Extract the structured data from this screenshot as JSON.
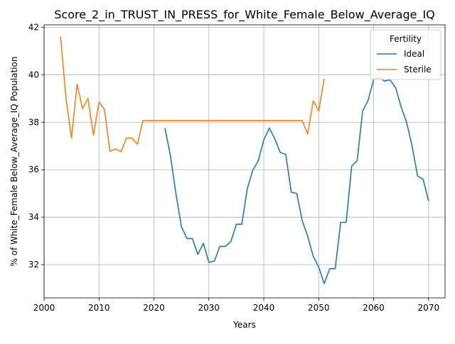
{
  "chart_data": {
    "type": "line",
    "title": "Score_2_in_TRUST_IN_PRESS_for_White_Female_Below_Average_IQ",
    "xlabel": "Years",
    "ylabel": "% of White_Female Below_Average_IQ Population",
    "xlim": [
      2000,
      2073
    ],
    "ylim": [
      30.6,
      42.1
    ],
    "xticks": [
      2000,
      2010,
      2020,
      2030,
      2040,
      2050,
      2060,
      2070
    ],
    "yticks": [
      32,
      34,
      36,
      38,
      40,
      42
    ],
    "grid": true,
    "legend": {
      "title": "Fertility",
      "placement": "top-right"
    },
    "series": [
      {
        "name": "Ideal",
        "color": "#1f77b4",
        "x": [
          2022,
          2023,
          2024,
          2025,
          2026,
          2027,
          2028,
          2029,
          2030,
          2031,
          2032,
          2033,
          2034,
          2035,
          2036,
          2037,
          2038,
          2039,
          2040,
          2041,
          2042,
          2043,
          2044,
          2045,
          2046,
          2047,
          2048,
          2049,
          2050,
          2051,
          2052,
          2053,
          2054,
          2055,
          2056,
          2057,
          2058,
          2059,
          2060,
          2061,
          2062,
          2063,
          2064,
          2065,
          2066,
          2067,
          2068,
          2069,
          2070
        ],
        "y": [
          37.75,
          36.6,
          35.0,
          33.6,
          33.1,
          33.1,
          32.43,
          32.9,
          32.1,
          32.15,
          32.77,
          32.77,
          32.97,
          33.7,
          33.7,
          35.2,
          35.98,
          36.37,
          37.25,
          37.75,
          37.3,
          36.72,
          36.65,
          35.05,
          35.0,
          33.85,
          33.2,
          32.35,
          31.9,
          31.2,
          31.83,
          31.83,
          33.78,
          33.78,
          36.15,
          36.38,
          38.47,
          38.92,
          39.8,
          39.88,
          39.73,
          39.78,
          39.45,
          38.65,
          38.0,
          37.0,
          35.73,
          35.6,
          34.68
        ]
      },
      {
        "name": "Sterile",
        "color": "#ff7f0e",
        "x": [
          2003,
          2004,
          2005,
          2006,
          2007,
          2008,
          2009,
          2010,
          2011,
          2012,
          2013,
          2014,
          2015,
          2016,
          2017,
          2018,
          2019,
          2020,
          2021,
          2022,
          2023,
          2024,
          2025,
          2026,
          2027,
          2028,
          2029,
          2030,
          2031,
          2032,
          2033,
          2034,
          2035,
          2036,
          2037,
          2038,
          2039,
          2040,
          2041,
          2042,
          2043,
          2044,
          2045,
          2046,
          2047,
          2048,
          2049,
          2050,
          2051
        ],
        "y": [
          41.6,
          39.0,
          37.33,
          39.6,
          38.57,
          39.0,
          37.45,
          38.85,
          38.53,
          36.77,
          36.87,
          36.75,
          37.33,
          37.33,
          37.07,
          38.07,
          38.07,
          38.07,
          38.07,
          38.07,
          38.07,
          38.07,
          38.07,
          38.07,
          38.07,
          38.07,
          38.07,
          38.07,
          38.07,
          38.07,
          38.07,
          38.07,
          38.07,
          38.07,
          38.07,
          38.07,
          38.07,
          38.07,
          38.07,
          38.07,
          38.07,
          38.07,
          38.07,
          38.07,
          38.07,
          37.5,
          38.9,
          38.47,
          39.83
        ]
      }
    ]
  }
}
